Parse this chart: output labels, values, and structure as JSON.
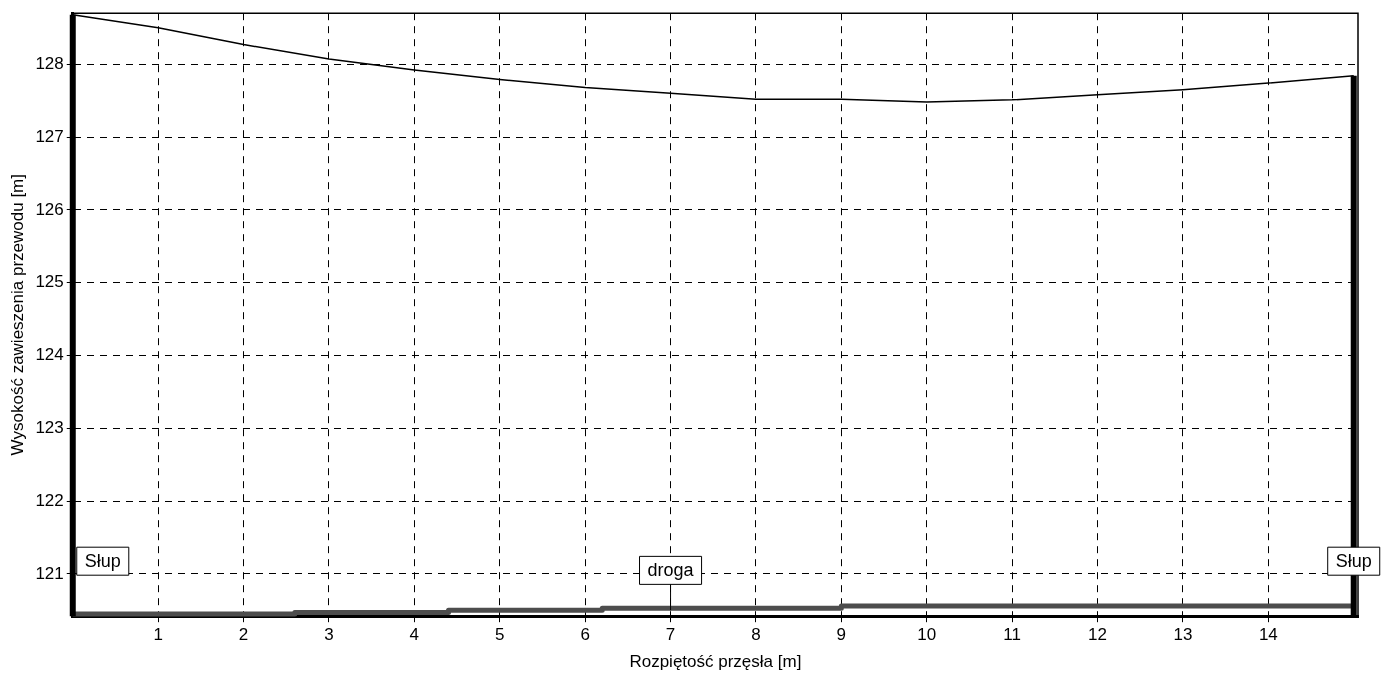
{
  "chart_data": {
    "type": "line",
    "xlabel": "Rozpiętość przęsła [m]",
    "ylabel": "Wysokość zawieszenia przewodu [m]",
    "xlim": [
      0,
      15.05
    ],
    "xticks": [
      1,
      2,
      3,
      4,
      5,
      6,
      7,
      8,
      9,
      10,
      11,
      12,
      13,
      14
    ],
    "ylim": [
      120.42,
      128.7
    ],
    "yticks": [
      121,
      122,
      123,
      124,
      125,
      126,
      127,
      128
    ],
    "grid": true,
    "legend": false,
    "marker": "none",
    "series": [
      {
        "color": "#000000",
        "x": [
          0,
          1,
          2,
          3,
          4,
          5,
          6,
          7,
          8,
          9,
          10,
          11,
          12,
          13,
          14,
          15
        ],
        "values": [
          128.68,
          128.5,
          128.27,
          128.07,
          127.92,
          127.79,
          127.68,
          127.6,
          127.52,
          127.52,
          127.48,
          127.51,
          127.58,
          127.65,
          127.74,
          127.84
        ]
      },
      {
        "type": "step",
        "color": "#4d4d4d",
        "x": [
          0,
          2.6,
          4.4,
          6.2,
          9,
          13,
          15
        ],
        "values": [
          120.43,
          120.45,
          120.47,
          120.5,
          120.53,
          120.56,
          120.56
        ]
      }
    ],
    "ref_lines": [
      {
        "axis": "x",
        "value": 0,
        "label": "Słup",
        "color": "#000000"
      },
      {
        "axis": "x",
        "value": 15,
        "label": "Słup",
        "color": "#000000"
      }
    ],
    "annotations": [
      {
        "text": "droga",
        "x": 7,
        "y": 120.5
      }
    ]
  }
}
